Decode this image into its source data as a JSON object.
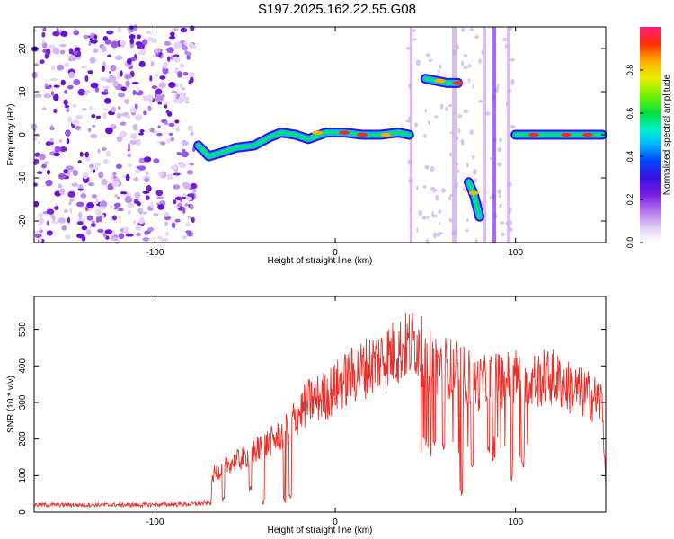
{
  "title": "S197.2025.162.22.55.G08",
  "chart_data": [
    {
      "type": "heatmap",
      "xlabel": "Height of straight line (km)",
      "ylabel": "Frequency (Hz)",
      "xlim": [
        -167,
        150
      ],
      "ylim": [
        -25,
        25
      ],
      "xticks": [
        -100,
        0,
        100
      ],
      "yticks": [
        -20,
        -10,
        0,
        10,
        20
      ],
      "colorbar": {
        "label": "Normalized spectral amplitude",
        "range": [
          0,
          1
        ],
        "ticks": [
          0.0,
          0.2,
          0.4,
          0.6,
          0.8
        ]
      },
      "noise_region_x": [
        -167,
        -78
      ],
      "signal_trace": [
        {
          "x": -76,
          "y": -2.5
        },
        {
          "x": -70,
          "y": -5
        },
        {
          "x": -62,
          "y": -4
        },
        {
          "x": -55,
          "y": -3
        },
        {
          "x": -45,
          "y": -2.5
        },
        {
          "x": -36,
          "y": -0.5
        },
        {
          "x": -30,
          "y": 0.5
        },
        {
          "x": -22,
          "y": 0
        },
        {
          "x": -15,
          "y": -1
        },
        {
          "x": -5,
          "y": 0.5
        },
        {
          "x": 5,
          "y": 0.5
        },
        {
          "x": 15,
          "y": 0
        },
        {
          "x": 25,
          "y": 0
        },
        {
          "x": 35,
          "y": 0.5
        },
        {
          "x": 41,
          "y": 0
        },
        {
          "x": 50,
          "y": 13
        },
        {
          "x": 56,
          "y": 12.5
        },
        {
          "x": 62,
          "y": 12
        },
        {
          "x": 68,
          "y": 12
        },
        {
          "x": 74,
          "y": -11
        },
        {
          "x": 77,
          "y": -14
        },
        {
          "x": 80,
          "y": -19
        },
        {
          "x": 100,
          "y": 0
        },
        {
          "x": 110,
          "y": 0
        },
        {
          "x": 120,
          "y": 0
        },
        {
          "x": 130,
          "y": 0
        },
        {
          "x": 140,
          "y": 0
        },
        {
          "x": 148,
          "y": 0
        }
      ],
      "vertical_streaks_x": [
        42,
        66,
        83,
        88,
        96
      ]
    },
    {
      "type": "line",
      "xlabel": "Height of straight line (km)",
      "ylabel": "SNR (10 * v/v)",
      "xlim": [
        -167,
        150
      ],
      "ylim": [
        0,
        590
      ],
      "xticks": [
        -100,
        0,
        100
      ],
      "yticks": [
        0,
        100,
        200,
        300,
        400,
        500
      ],
      "color": "#e8312b",
      "envelope": [
        {
          "x": -167,
          "y": 20
        },
        {
          "x": -140,
          "y": 20
        },
        {
          "x": -110,
          "y": 20
        },
        {
          "x": -80,
          "y": 22
        },
        {
          "x": -69,
          "y": 25
        },
        {
          "x": -68,
          "y": 100
        },
        {
          "x": -60,
          "y": 130
        },
        {
          "x": -50,
          "y": 150
        },
        {
          "x": -40,
          "y": 180
        },
        {
          "x": -30,
          "y": 210
        },
        {
          "x": -22,
          "y": 260
        },
        {
          "x": -15,
          "y": 300
        },
        {
          "x": -5,
          "y": 320
        },
        {
          "x": 5,
          "y": 360
        },
        {
          "x": 15,
          "y": 390
        },
        {
          "x": 25,
          "y": 420
        },
        {
          "x": 35,
          "y": 440
        },
        {
          "x": 45,
          "y": 470
        },
        {
          "x": 50,
          "y": 420
        },
        {
          "x": 60,
          "y": 400
        },
        {
          "x": 70,
          "y": 380
        },
        {
          "x": 80,
          "y": 350
        },
        {
          "x": 90,
          "y": 360
        },
        {
          "x": 100,
          "y": 370
        },
        {
          "x": 110,
          "y": 360
        },
        {
          "x": 120,
          "y": 370
        },
        {
          "x": 130,
          "y": 340
        },
        {
          "x": 140,
          "y": 320
        },
        {
          "x": 148,
          "y": 300
        },
        {
          "x": 150,
          "y": 80
        }
      ],
      "dips": [
        {
          "x": -62,
          "y": 20
        },
        {
          "x": -47,
          "y": 50
        },
        {
          "x": -40,
          "y": 20
        },
        {
          "x": -28,
          "y": 20
        },
        {
          "x": -25,
          "y": 30
        },
        {
          "x": 50,
          "y": 180
        },
        {
          "x": 55,
          "y": 180
        },
        {
          "x": 60,
          "y": 170
        },
        {
          "x": 70,
          "y": 40
        },
        {
          "x": 76,
          "y": 120
        },
        {
          "x": 85,
          "y": 160
        },
        {
          "x": 88,
          "y": 140
        },
        {
          "x": 98,
          "y": 80
        },
        {
          "x": 104,
          "y": 120
        }
      ]
    }
  ]
}
